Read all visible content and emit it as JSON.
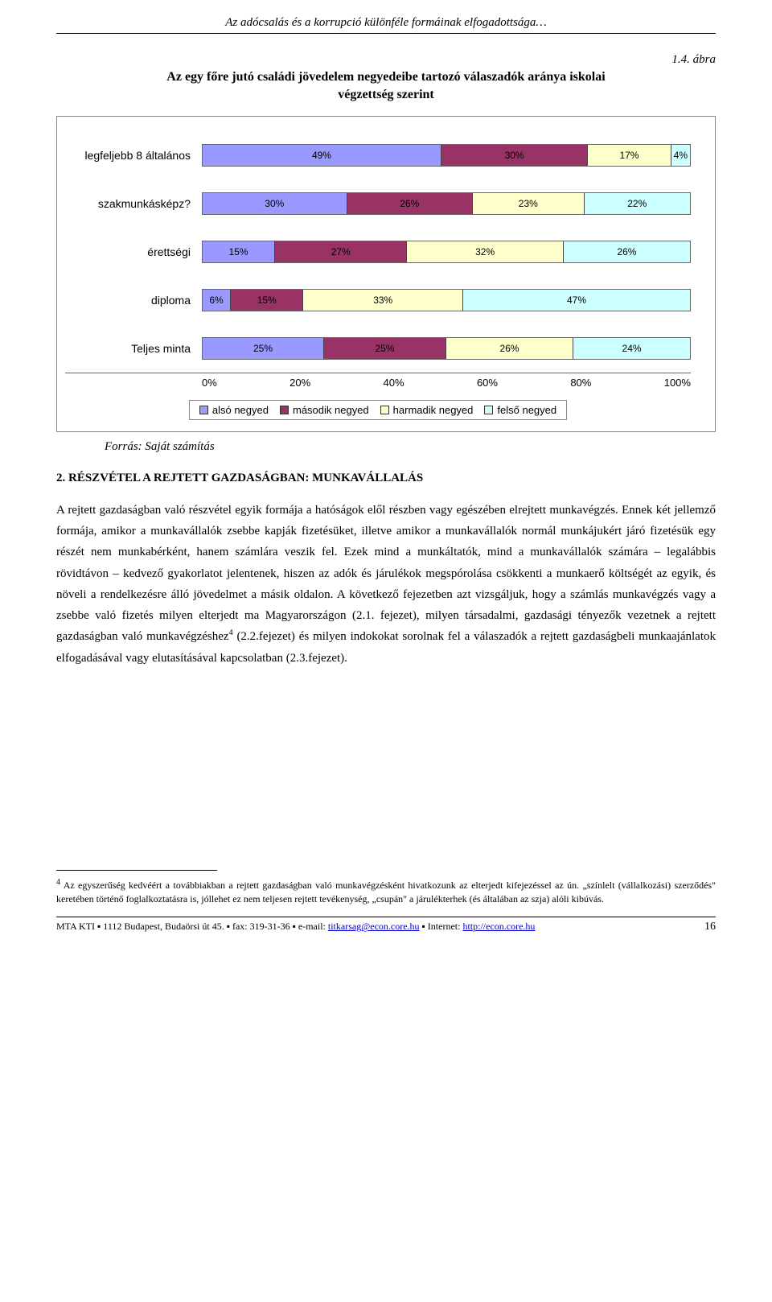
{
  "header": "Az adócsalás és a korrupció különféle formáinak elfogadottsága…",
  "figure": {
    "number": "1.4. ábra",
    "title_line1": "Az egy főre jutó családi jövedelem negyedeibe tartozó válaszadók aránya iskolai",
    "title_line2": "végzettség szerint"
  },
  "chart": {
    "type": "stacked-bar-horizontal",
    "background": "#ffffff",
    "categories": [
      {
        "label": "legfeljebb 8 általános",
        "values": [
          49,
          30,
          17,
          4
        ]
      },
      {
        "label": "szakmunkásképz?",
        "values": [
          30,
          26,
          23,
          22
        ]
      },
      {
        "label": "érettségi",
        "values": [
          15,
          27,
          32,
          26
        ]
      },
      {
        "label": "diploma",
        "values": [
          6,
          15,
          33,
          47
        ]
      },
      {
        "label": "Teljes minta",
        "values": [
          25,
          25,
          26,
          24
        ]
      }
    ],
    "series": [
      {
        "name": "alsó negyed",
        "color": "#9999ff"
      },
      {
        "name": "második negyed",
        "color": "#993366"
      },
      {
        "name": "harmadik negyed",
        "color": "#ffffcc"
      },
      {
        "name": "felső negyed",
        "color": "#ccffff"
      }
    ],
    "x_ticks": [
      "0%",
      "20%",
      "40%",
      "60%",
      "80%",
      "100%"
    ],
    "value_suffix": "%"
  },
  "source": "Forrás: Saját számítás",
  "section_heading": "2. RÉSZVÉTEL A REJTETT GAZDASÁGBAN: MUNKAVÁLLALÁS",
  "body": "A rejtett gazdaságban való részvétel egyik formája a hatóságok elől részben vagy egészében elrejtett munkavégzés. Ennek két jellemző formája, amikor a munkavállalók zsebbe kapják fizetésüket, illetve amikor a munkavállalók normál munkájukért járó fizetésük egy részét nem munkabérként, hanem számlára veszik fel. Ezek mind a munkáltatók, mind a munkavállalók számára – legalábbis rövidtávon – kedvező gyakorlatot jelentenek, hiszen az adók és járulékok megspórolása csökkenti a munkaerő költségét az egyik, és növeli a rendelkezésre álló jövedelmet a másik oldalon. A következő fejezetben azt vizsgáljuk, hogy a számlás munkavégzés vagy a zsebbe való fizetés milyen elterjedt ma Magyarországon (2.1. fejezet), milyen társadalmi, gazdasági tényezők vezetnek a rejtett gazdaságban való munkavégzéshez",
  "body_after_sup": " (2.2.fejezet) és milyen indokokat sorolnak fel a válaszadók a rejtett gazdaságbeli munkaajánlatok elfogadásával vagy elutasításával kapcsolatban (2.3.fejezet).",
  "footnote_mark": "4",
  "footnote": "Az egyszerűség kedvéért a továbbiakban a rejtett gazdaságban való munkavégzésként hivatkozunk az elterjedt kifejezéssel az ún. „színlelt (vállalkozási) szerződés\" keretében történő foglalkoztatásra is, jóllehet ez nem teljesen rejtett tevékenység, „csupán\" a járulékterhek (és általában az szja) alóli kibúvás.",
  "footer": {
    "prefix": "MTA KTI ▪ 1112 Budapest, Budaörsi út 45. ▪ fax: 319-31-36 ▪ e-mail: ",
    "email": "titkarsag@econ.core.hu",
    "mid": " ▪ Internet: ",
    "url": "http://econ.core.hu",
    "page": "16"
  }
}
